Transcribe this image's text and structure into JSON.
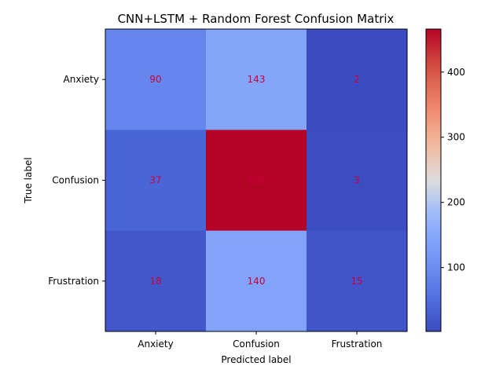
{
  "chart_data": {
    "type": "heatmap",
    "title": "CNN+LSTM + Random Forest Confusion Matrix",
    "xlabel": "Predicted label",
    "ylabel": "True label",
    "x_categories": [
      "Anxiety",
      "Confusion",
      "Frustration"
    ],
    "y_categories": [
      "Anxiety",
      "Confusion",
      "Frustration"
    ],
    "values": [
      [
        90,
        143,
        2
      ],
      [
        37,
        466,
        3
      ],
      [
        18,
        140,
        15
      ]
    ],
    "colormap": "coolwarm",
    "value_range": [
      2,
      466
    ],
    "colorbar_ticks": [
      100,
      200,
      300,
      400
    ],
    "cell_label_color": "#c8003c",
    "grid": false
  }
}
